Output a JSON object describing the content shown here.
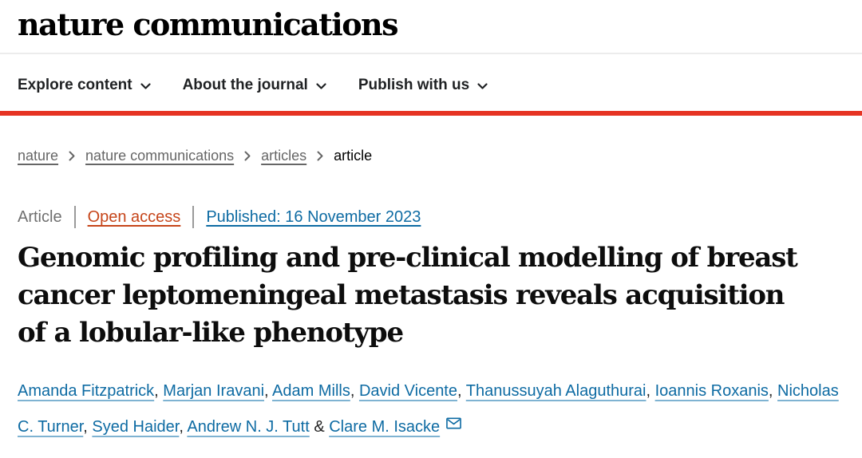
{
  "header": {
    "logo_text": "nature communications"
  },
  "nav": {
    "items": [
      {
        "label": "Explore content"
      },
      {
        "label": "About the journal"
      },
      {
        "label": "Publish with us"
      }
    ]
  },
  "breadcrumb": {
    "items": [
      {
        "label": "nature"
      },
      {
        "label": "nature communications"
      },
      {
        "label": "articles"
      },
      {
        "label": "article"
      }
    ]
  },
  "meta": {
    "content_type": "Article",
    "access": "Open access",
    "published": "Published: 16 November 2023"
  },
  "article": {
    "title": "Genomic profiling and pre-clinical modelling of breast cancer leptomeningeal metastasis reveals acquisition of a lobular-like phenotype",
    "title_lines": [
      "Genomic profiling and pre-clinical modelling of breast",
      "cancer leptomeningeal metastasis reveals acquisition",
      "of a lobular-like phenotype"
    ],
    "authors": [
      "Amanda Fitzpatrick",
      "Marjan Iravani",
      "Adam Mills",
      "David Vicente",
      "Thanussuyah Alaguthurai",
      "Ioannis Roxanis",
      "Nicholas C. Turner",
      "Syed Haider",
      "Andrew N. J. Tutt",
      "Clare M. Isacke"
    ],
    "author_separator": ", ",
    "author_separator_last": "&"
  },
  "colors": {
    "brand_red": "#e63323",
    "link_blue": "#0e6ba3",
    "open_access_orange": "#c6451a",
    "breadcrumb_gray": "#666666"
  }
}
